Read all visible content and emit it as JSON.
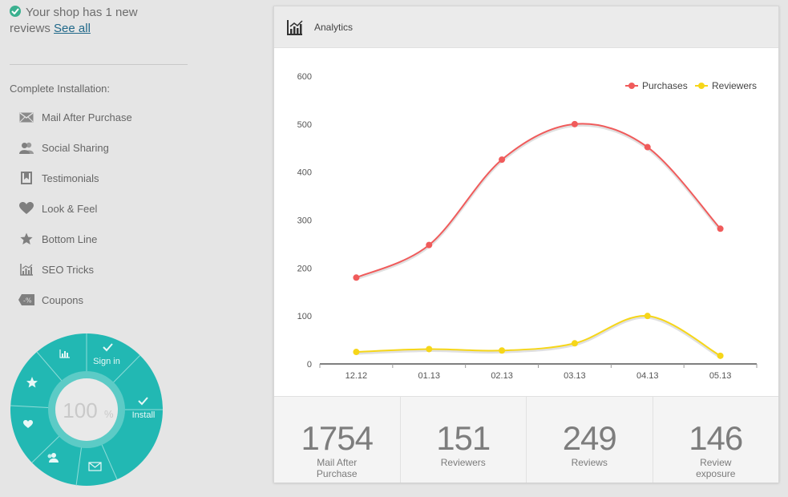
{
  "notice": {
    "text": "Your shop has 1 new reviews",
    "link": "See all"
  },
  "sidebar": {
    "title": "Complete Installation:",
    "items": [
      {
        "label": "Mail After Purchase",
        "icon": "mail-icon"
      },
      {
        "label": "Social Sharing",
        "icon": "users-icon"
      },
      {
        "label": "Testimonials",
        "icon": "bookmark-icon"
      },
      {
        "label": "Look & Feel",
        "icon": "heart-icon"
      },
      {
        "label": "Bottom Line",
        "icon": "star-icon"
      },
      {
        "label": "SEO Tricks",
        "icon": "chart-icon"
      },
      {
        "label": "Coupons",
        "icon": "coupon-icon"
      }
    ]
  },
  "wheel": {
    "percent": "100",
    "percent_sign": "%",
    "sign_in": "Sign in",
    "install": "Install",
    "color": "#22b8b3"
  },
  "panel": {
    "title": "Analytics"
  },
  "chart_data": {
    "type": "line",
    "x": [
      "12.12",
      "01.13",
      "02.13",
      "03.13",
      "04.13",
      "05.13"
    ],
    "series": [
      {
        "name": "Purchases",
        "color": "#f05b5b",
        "values": [
          180,
          248,
          426,
          500,
          452,
          282
        ]
      },
      {
        "name": "Reviewers",
        "color": "#f6d619",
        "values": [
          25,
          31,
          28,
          43,
          100,
          17
        ]
      }
    ],
    "ylim": [
      0,
      600
    ],
    "yticks": [
      0,
      100,
      200,
      300,
      400,
      500,
      600
    ],
    "legend": "top-right",
    "grid": false
  },
  "stats": [
    {
      "value": "1754",
      "label": "Mail After\nPurchase"
    },
    {
      "value": "151",
      "label": "Reviewers"
    },
    {
      "value": "249",
      "label": "Reviews"
    },
    {
      "value": "146",
      "label": "Review\nexposure"
    }
  ]
}
